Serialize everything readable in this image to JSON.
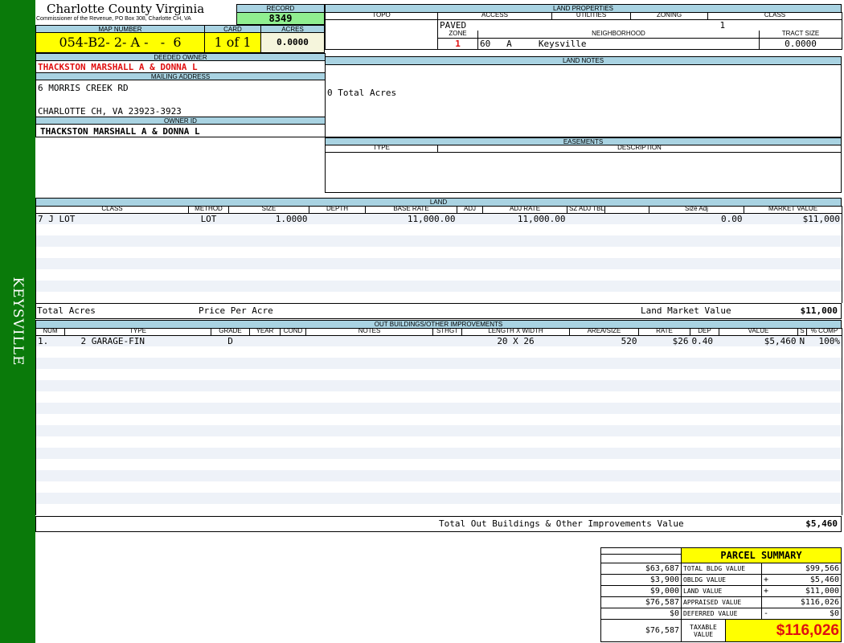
{
  "sidebar": {
    "label": "KEYSVILLE",
    "color": "#0a7a0a"
  },
  "header": {
    "title": "Charlotte County Virginia",
    "subtitle": "Commissioner of the Revenue, PO Box 308, Charlotte CH, VA",
    "record_label": "RECORD",
    "record": "8349",
    "map_number_label": "MAP NUMBER",
    "map_number": "054-B2- 2- A -   -  6",
    "card_label": "CARD",
    "card": "1 of 1",
    "acres_label": "ACRES",
    "acres": "0.0000"
  },
  "owner": {
    "deeded_label": "DEEDED OWNER",
    "deeded": "THACKSTON MARSHALL A & DONNA L",
    "mailing_label": "MAILING ADDRESS",
    "address1": "6 MORRIS CREEK RD",
    "address2": "CHARLOTTE CH, VA 23923-3923",
    "owner_id_label": "OWNER ID",
    "owner_id": "THACKSTON MARSHALL A & DONNA L"
  },
  "land_properties": {
    "label": "LAND PROPERTIES",
    "topo_label": "TOPO",
    "access_label": "ACCESS",
    "utilities_label": "UTILITIES",
    "zoning_label": "ZONING",
    "class_label": "CLASS",
    "access": "PAVED",
    "class": "1",
    "zone_label": "ZONE",
    "neighborhood_label": "NEIGHBORHOOD",
    "tract_label": "TRACT SIZE",
    "zone": "1",
    "neighborhood": "60   A     Keysville",
    "tract_size": "0.0000"
  },
  "land_notes": {
    "label": "LAND NOTES",
    "text": "0 Total Acres"
  },
  "easements": {
    "label": "EASEMENTS",
    "type_label": "TYPE",
    "description_label": "DESCRIPTION"
  },
  "land": {
    "label": "LAND",
    "columns": [
      "CLASS",
      "METHOD",
      "SIZE",
      "DEPTH",
      "BASE RATE",
      "ADJ",
      "ADJ RATE",
      "SZ ADJ TBL",
      "",
      "Size Adj",
      "MARKET VALUE"
    ],
    "rows": [
      [
        "7 J LOT",
        "LOT",
        "1.0000",
        "",
        "11,000.00",
        "",
        "11,000.00",
        "",
        "",
        "0.00",
        "$11,000"
      ]
    ],
    "total_acres_label": "Total Acres",
    "price_per_acre_label": "Price Per Acre",
    "market_value_label": "Land Market Value",
    "market_value": "$11,000"
  },
  "outbuildings": {
    "label": "OUT BUILDINGS/OTHER IMPROVEMENTS",
    "columns": [
      "NUM",
      "TYPE",
      "GRADE",
      "YEAR",
      "COND",
      "NOTES",
      "STHGT",
      "LENGTH X WIDTH",
      "AREA/SIZE",
      "RATE",
      "DEP",
      "VALUE",
      "S",
      "% COMP"
    ],
    "rows": [
      [
        "1.",
        "2 GARAGE-FIN",
        "D",
        "",
        "",
        "",
        "",
        "20 X 26",
        "520",
        "$26",
        "0.40",
        "$5,460",
        "N",
        "100%"
      ]
    ],
    "total_label": "Total Out Buildings & Other Improvements Value",
    "total": "$5,460"
  },
  "summary": {
    "title": "PARCEL SUMMARY",
    "rows": [
      {
        "prior": "$63,687",
        "label": "TOTAL BLDG VALUE",
        "sign": "",
        "value": "$99,566"
      },
      {
        "prior": "$3,900",
        "label": "OBLDG VALUE",
        "sign": "+",
        "value": "$5,460"
      },
      {
        "prior": "$9,000",
        "label": "LAND VALUE",
        "sign": "+",
        "value": "$11,000"
      },
      {
        "prior": "$76,587",
        "label": "APPRAISED VALUE",
        "sign": "",
        "value": "$116,026"
      },
      {
        "prior": "$0",
        "label": "DEFERRED VALUE",
        "sign": "-",
        "value": "$0"
      }
    ],
    "taxable_prior": "$76,587",
    "taxable_label": "TAXABLE VALUE",
    "taxable": "$116,026"
  }
}
